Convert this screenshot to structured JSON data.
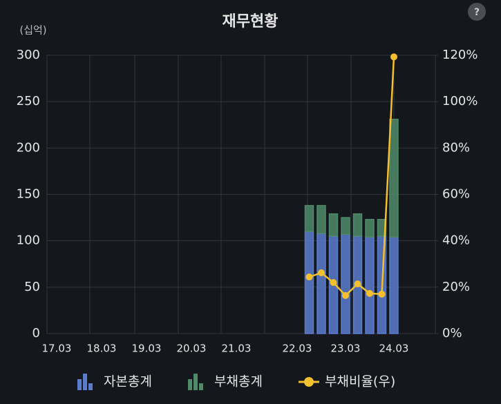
{
  "chart_data": {
    "type": "bar",
    "title": "재무현황",
    "y_unit": "(십억)",
    "help": "?",
    "categories": [
      "17.03",
      "18.03",
      "19.03",
      "20.03",
      "21.03",
      "22.03",
      null,
      null,
      null,
      "23.03",
      null,
      null,
      null,
      "24.03"
    ],
    "series": [
      {
        "name": "자본총계",
        "color": "#5b7bcc",
        "values": [
          null,
          null,
          null,
          null,
          null,
          null,
          110,
          108,
          105,
          107,
          105,
          104,
          105,
          104
        ]
      },
      {
        "name": "부채총계",
        "color": "#4f8a68",
        "values": [
          null,
          null,
          null,
          null,
          null,
          null,
          28,
          30,
          24,
          18,
          24,
          19,
          18,
          127
        ]
      },
      {
        "name": "부채비율(우)",
        "color": "#f5c02e",
        "type": "line",
        "axis": "y2",
        "values": [
          null,
          null,
          null,
          null,
          null,
          null,
          24.4,
          26.2,
          22.0,
          16.4,
          21.4,
          17.3,
          17.0,
          119.3
        ]
      }
    ],
    "stacked": true,
    "ylim": [
      0,
      300
    ],
    "yticks": [
      0,
      50,
      100,
      150,
      200,
      250,
      300
    ],
    "y2lim": [
      0,
      120
    ],
    "y2ticks": [
      {
        "value": 0,
        "label": "0%"
      },
      {
        "value": 20,
        "label": "20%"
      },
      {
        "value": 40,
        "label": "40%"
      },
      {
        "value": 60,
        "label": "60%"
      },
      {
        "value": 80,
        "label": "80%"
      },
      {
        "value": 100,
        "label": "100%"
      },
      {
        "value": 120,
        "label": "120%"
      }
    ],
    "grid": true,
    "legend": "bottom"
  }
}
